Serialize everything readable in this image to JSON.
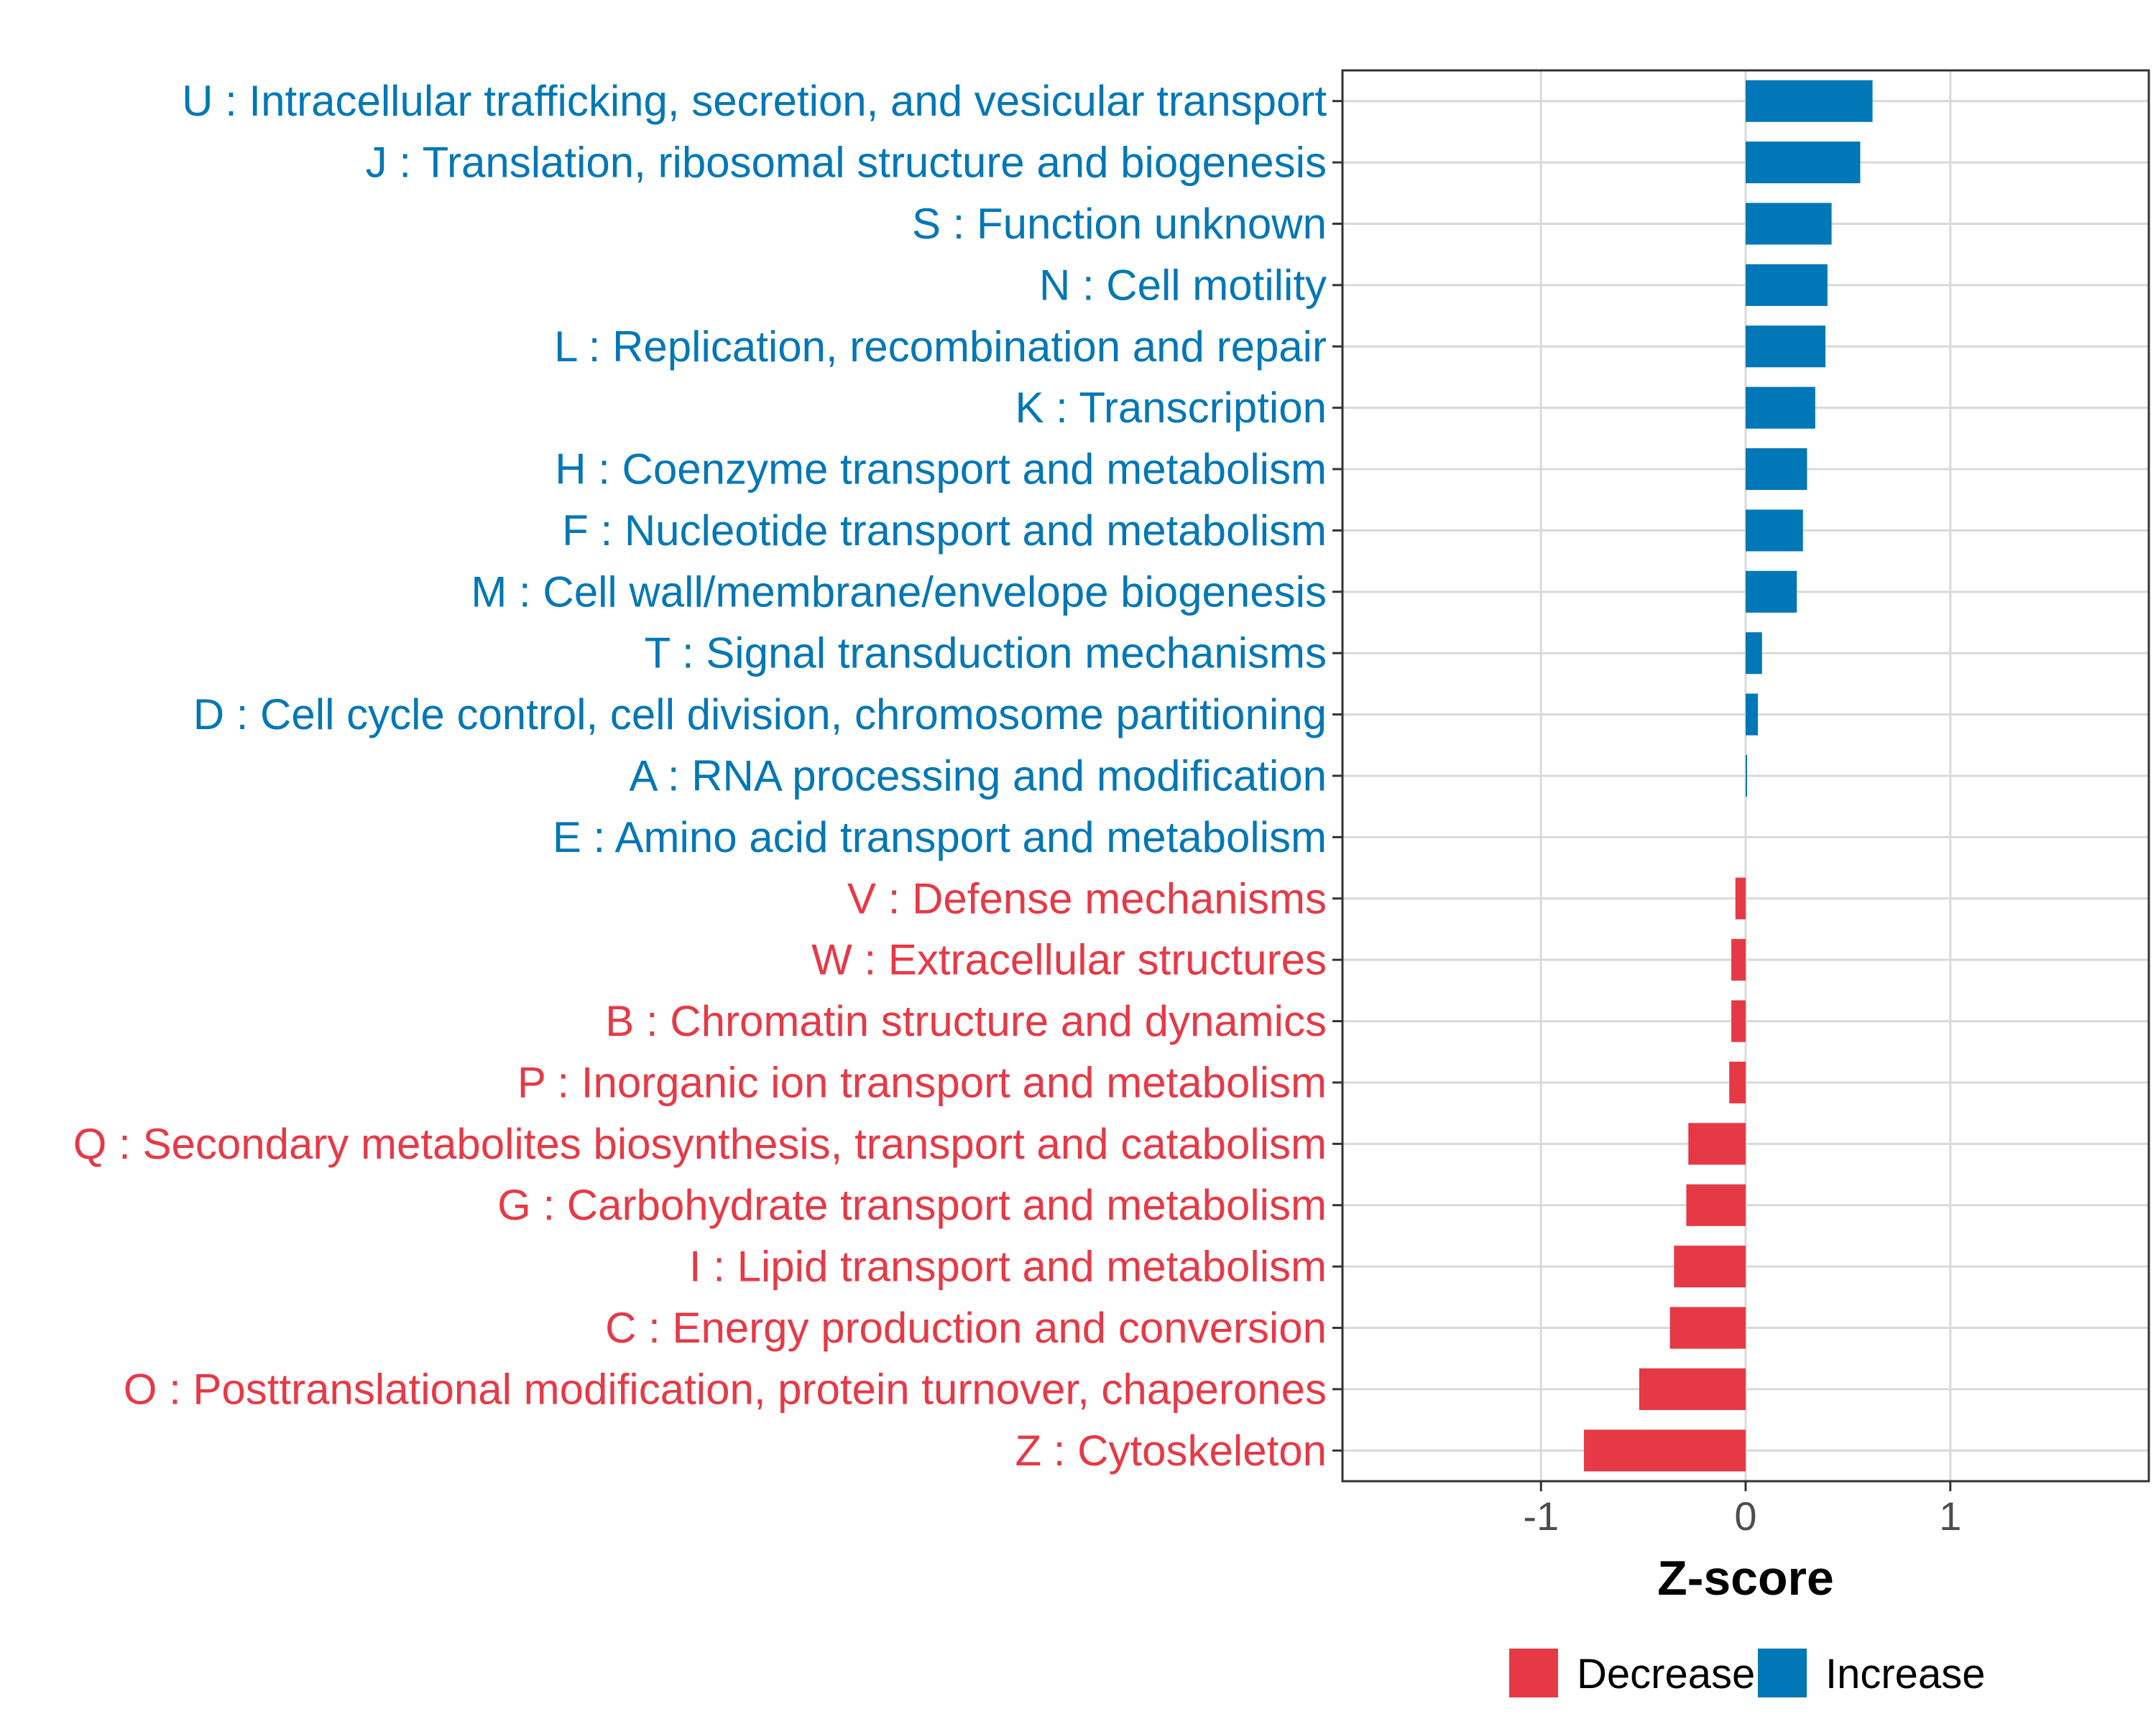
{
  "chart_data": {
    "type": "bar",
    "orientation": "horizontal",
    "xlabel": "Z-score",
    "xlim": [
      -1.97,
      1.97
    ],
    "xticks": [
      -1,
      0,
      1
    ],
    "xtick_labels": [
      "-1",
      "0",
      "1"
    ],
    "grid": true,
    "legend_position": "bottom",
    "legend": [
      {
        "name": "Decrease",
        "color": "#E63946"
      },
      {
        "name": "Increase",
        "color": "#0077B6"
      }
    ],
    "colors": {
      "Increase": "#0077B6",
      "Decrease": "#E63946"
    },
    "categories": [
      "U : Intracellular trafficking, secretion, and vesicular transport",
      "J : Translation, ribosomal structure and biogenesis",
      "S : Function unknown",
      "N : Cell motility",
      "L : Replication, recombination and repair",
      "K : Transcription",
      "H : Coenzyme transport and metabolism",
      "F : Nucleotide transport and metabolism",
      "M : Cell wall/membrane/envelope biogenesis",
      "T : Signal transduction mechanisms",
      "D : Cell cycle control, cell division, chromosome partitioning",
      "A : RNA processing and modification",
      "E : Amino acid transport and metabolism",
      "V : Defense mechanisms",
      "W : Extracellular structures",
      "B : Chromatin structure and dynamics",
      "P : Inorganic ion transport and metabolism",
      "Q : Secondary metabolites biosynthesis, transport and catabolism",
      "G : Carbohydrate transport and metabolism",
      "I : Lipid transport and metabolism",
      "C : Energy production and conversion",
      "O : Posttranslational modification, protein turnover, chaperones",
      "Z : Cytoskeleton"
    ],
    "values": [
      0.62,
      0.56,
      0.42,
      0.4,
      0.39,
      0.34,
      0.3,
      0.28,
      0.25,
      0.08,
      0.06,
      0.005,
      0.0,
      -0.05,
      -0.07,
      -0.07,
      -0.08,
      -0.28,
      -0.29,
      -0.35,
      -0.37,
      -0.52,
      -0.79
    ],
    "groups": [
      "Increase",
      "Increase",
      "Increase",
      "Increase",
      "Increase",
      "Increase",
      "Increase",
      "Increase",
      "Increase",
      "Increase",
      "Increase",
      "Increase",
      "Increase",
      "Decrease",
      "Decrease",
      "Decrease",
      "Decrease",
      "Decrease",
      "Decrease",
      "Decrease",
      "Decrease",
      "Decrease",
      "Decrease"
    ]
  }
}
